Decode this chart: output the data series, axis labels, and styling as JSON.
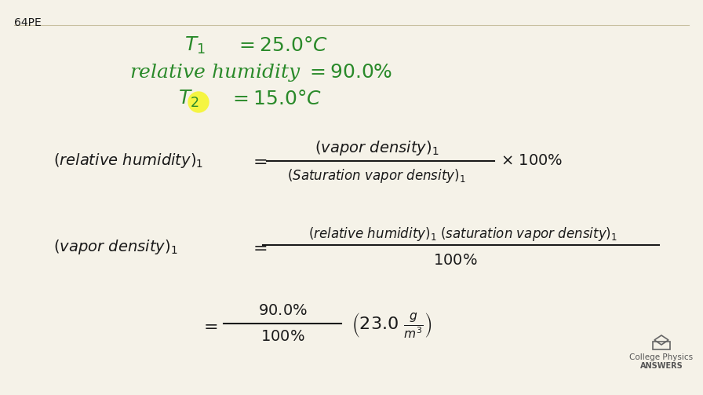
{
  "background_color": "#f5f2e8",
  "label_64pe": "64PE",
  "line_color": "#c8c0a0",
  "green_color": "#2a8a2a",
  "black_color": "#1a1a1a",
  "highlight_yellow": "#f5f542",
  "logo_color": "#8a8a8a"
}
